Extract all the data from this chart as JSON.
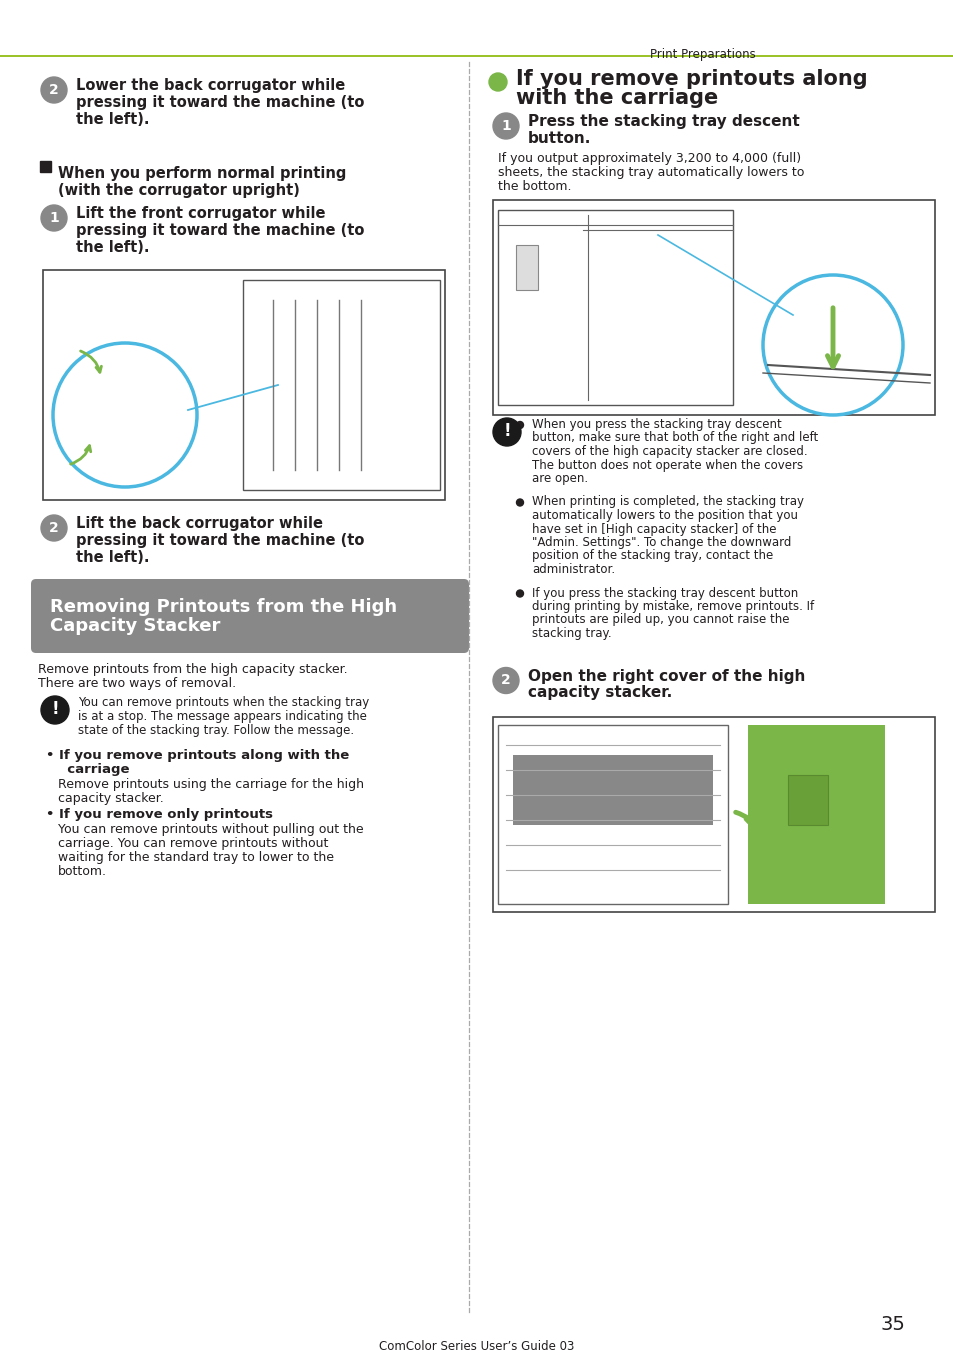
{
  "bg_color": "#ffffff",
  "text_color": "#231f20",
  "header_text": "Print Preparations",
  "header_line_color": "#8ab800",
  "step_circle_color": "#888888",
  "step_circle_text": "#ffffff",
  "green_dot_color": "#7ab648",
  "section_bg": "#888888",
  "section_text_color": "#ffffff",
  "caution_bg": "#1a1a1a",
  "page_number": "35",
  "footer": "ComColor Series User’s Guide 03",
  "left": {
    "step2_lines": [
      "Lower the back corrugator while",
      "pressing it toward the machine (to",
      "the left)."
    ],
    "normal_print_line1": "When you perform normal printing",
    "normal_print_line2": "(with the corrugator upright)",
    "step1_lines": [
      "Lift the front corrugator while",
      "pressing it toward the machine (to",
      "the left)."
    ],
    "step2b_lines": [
      "Lift the back corrugator while",
      "pressing it toward the machine (to",
      "the left)."
    ],
    "section_line1": "Removing Printouts from the High",
    "section_line2": "Capacity Stacker",
    "intro_line1": "Remove printouts from the high capacity stacker.",
    "intro_line2": "There are two ways of removal.",
    "note_line1": "You can remove printouts when the stacking tray",
    "note_line2": "is at a stop. The message appears indicating the",
    "note_line3": "state of the stacking tray. Follow the message.",
    "b1_bold1": "If you remove printouts along with the",
    "b1_bold2": "carriage",
    "b1_text1": "Remove printouts using the carriage for the high",
    "b1_text2": "capacity stacker.",
    "b2_bold": "If you remove only printouts",
    "b2_text1": "You can remove printouts without pulling out the",
    "b2_text2": "carriage. You can remove printouts without",
    "b2_text3": "waiting for the standard tray to lower to the",
    "b2_text4": "bottom."
  },
  "right": {
    "title_line1": "If you remove printouts along",
    "title_line2": "with the carriage",
    "step1_bold1": "Press the stacking tray descent",
    "step1_bold2": "button.",
    "step1_text1": "If you output approximately 3,200 to 4,000 (full)",
    "step1_text2": "sheets, the stacking tray automatically lowers to",
    "step1_text3": "the bottom.",
    "caution_b1_lines": [
      "When you press the stacking tray descent",
      "button, make sure that both of the right and left",
      "covers of the high capacity stacker are closed.",
      "The button does not operate when the covers",
      "are open."
    ],
    "caution_b2_lines": [
      "When printing is completed, the stacking tray",
      "automatically lowers to the position that you",
      "have set in [High capacity stacker] of the",
      "\"Admin. Settings\". To change the downward",
      "position of the stacking tray, contact the",
      "administrator."
    ],
    "caution_b3_lines": [
      "If you press the stacking tray descent button",
      "during printing by mistake, remove printouts. If",
      "printouts are piled up, you cannot raise the",
      "stacking tray."
    ],
    "step2_bold1": "Open the right cover of the high",
    "step2_bold2": "capacity stacker."
  }
}
